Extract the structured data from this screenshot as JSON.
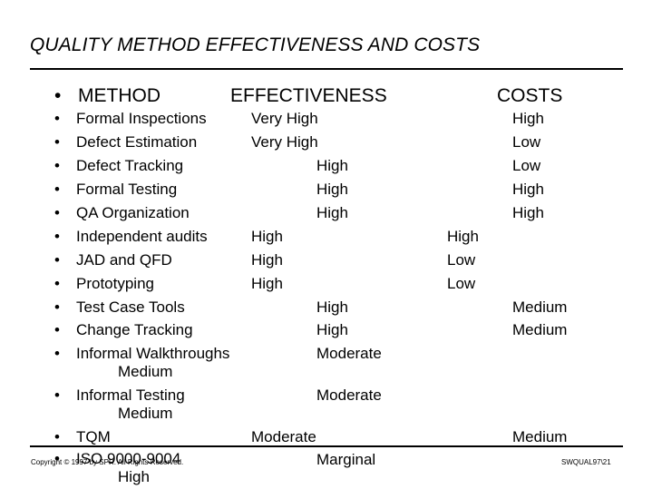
{
  "title": "QUALITY METHOD EFFECTIVENESS AND COSTS",
  "bullet": "•",
  "header": {
    "method": "METHOD",
    "effectiveness": "EFFECTIVENESS",
    "costs": "COSTS"
  },
  "rows": [
    {
      "method": "Formal Inspections",
      "effectiveness": "Very High",
      "costs": "High"
    },
    {
      "method": "Defect Estimation",
      "effectiveness": "Very High",
      "costs": "Low"
    },
    {
      "method": "Defect Tracking",
      "effectiveness": "High",
      "costs": "Low"
    },
    {
      "method": "Formal Testing",
      "effectiveness": "High",
      "costs": "High"
    },
    {
      "method": "QA Organization",
      "effectiveness": "High",
      "costs": "High"
    },
    {
      "method": "Independent audits",
      "effectiveness": "High",
      "costs": "High"
    },
    {
      "method": "JAD and QFD",
      "effectiveness": "High",
      "costs": "Low"
    },
    {
      "method": "Prototyping",
      "effectiveness": "High",
      "costs": "Low"
    },
    {
      "method": "Test Case Tools",
      "effectiveness": "High",
      "costs": "Medium"
    },
    {
      "method": "Change Tracking",
      "effectiveness": "High",
      "costs": "Medium"
    },
    {
      "method": "Informal Walkthroughs",
      "effectiveness": "Moderate",
      "costs": "Medium"
    },
    {
      "method": "Informal Testing",
      "effectiveness": "Moderate",
      "costs": "Medium"
    },
    {
      "method": "TQM",
      "effectiveness": "Moderate",
      "costs": "Medium"
    },
    {
      "method": "ISO 9000-9004",
      "effectiveness": "Marginal",
      "costs": "High"
    }
  ],
  "footer": {
    "copyright": "Copyright © 1997 by SPR. All Rights Reserved.",
    "code": "SWQUAL97\\21"
  }
}
